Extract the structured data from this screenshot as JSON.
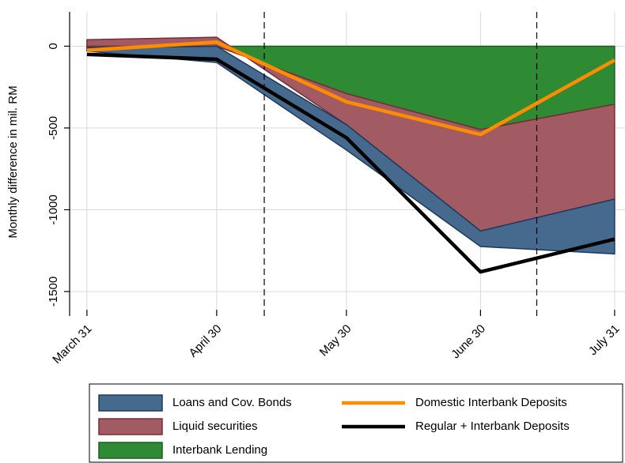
{
  "chart_data": {
    "type": "area",
    "y_label": "Monthly difference in mil. RM",
    "x": [
      0,
      30,
      60,
      91,
      122
    ],
    "xlim": [
      -4,
      124.4
    ],
    "xticks": [
      {
        "value": 0,
        "label": "March 31"
      },
      {
        "value": 30,
        "label": "April 30"
      },
      {
        "value": 60,
        "label": "May 30"
      },
      {
        "value": 91,
        "label": "June 30"
      },
      {
        "value": 122,
        "label": "July 31"
      }
    ],
    "ylim": [
      -1650,
      210
    ],
    "yticks": [
      0,
      -500,
      -1000,
      -1500
    ],
    "grid": true,
    "vlines": [
      41,
      104
    ],
    "legend": "bottom",
    "series": [
      {
        "name": "Loans and Cov. Bonds",
        "type": "area",
        "color": "#456a8e",
        "edgecolor": "#1c3a5e",
        "values": [
          -20,
          -100,
          -155,
          -95,
          -335
        ]
      },
      {
        "name": "Liquid securities",
        "type": "area",
        "color": "#a35b63",
        "edgecolor": "#7a2b34",
        "values": [
          40,
          55,
          -190,
          -620,
          -580
        ]
      },
      {
        "name": "Interbank Lending",
        "type": "area",
        "color": "#2e8b33",
        "edgecolor": "#1a5e1f",
        "values": [
          -10,
          0,
          -290,
          -510,
          -355
        ]
      },
      {
        "name": "Domestic Interbank Deposits",
        "type": "line",
        "color": "#ff8c00",
        "values": [
          -25,
          25,
          -340,
          -540,
          -85
        ]
      },
      {
        "name": "Regular + Interbank  Deposits",
        "type": "line",
        "color": "#000000",
        "values": [
          -50,
          -80,
          -560,
          -1380,
          -1180
        ]
      }
    ]
  }
}
